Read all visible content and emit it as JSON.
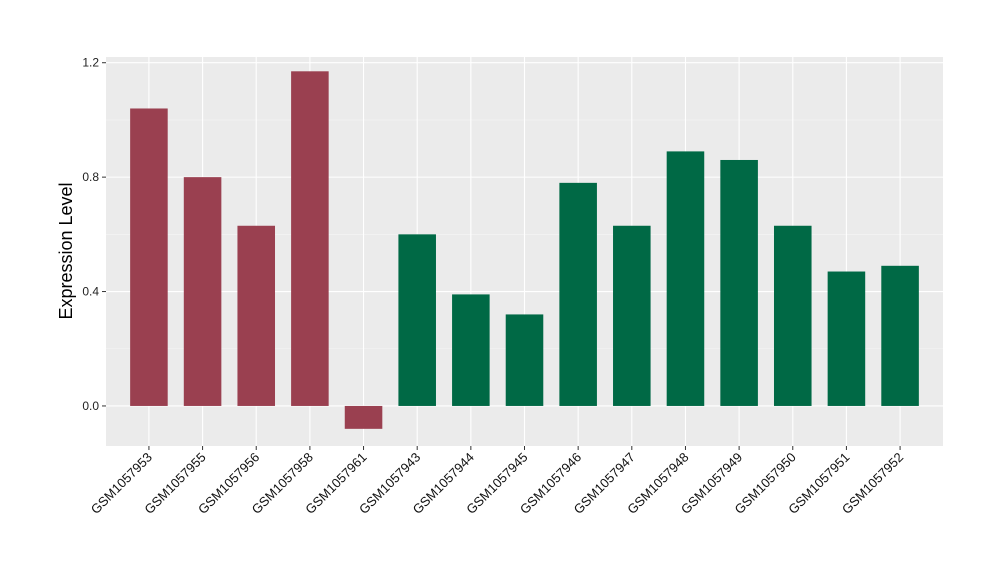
{
  "chart_data": {
    "type": "bar",
    "title": "",
    "xlabel": "",
    "ylabel": "Expression Level",
    "ylim": [
      -0.14,
      1.22
    ],
    "yticks": [
      0.0,
      0.4,
      0.8,
      1.2
    ],
    "ytick_labels": [
      "0.0",
      "0.4",
      "0.8",
      "1.2"
    ],
    "grid": true,
    "categories": [
      "GSM1057953",
      "GSM1057955",
      "GSM1057956",
      "GSM1057958",
      "GSM1057961",
      "GSM1057943",
      "GSM1057944",
      "GSM1057945",
      "GSM1057946",
      "GSM1057947",
      "GSM1057948",
      "GSM1057949",
      "GSM1057950",
      "GSM1057951",
      "GSM1057952"
    ],
    "values": [
      1.04,
      0.8,
      0.63,
      1.17,
      -0.08,
      0.6,
      0.39,
      0.32,
      0.78,
      0.63,
      0.89,
      0.86,
      0.63,
      0.47,
      0.49
    ],
    "bar_colors": [
      "#9a4050",
      "#9a4050",
      "#9a4050",
      "#9a4050",
      "#9a4050",
      "#006945",
      "#006945",
      "#006945",
      "#006945",
      "#006945",
      "#006945",
      "#006945",
      "#006945",
      "#006945",
      "#006945"
    ]
  },
  "colors": {
    "panel_background": "#ebebeb",
    "grid_major": "#ffffff",
    "grid_minor": "#f5f5f5"
  }
}
